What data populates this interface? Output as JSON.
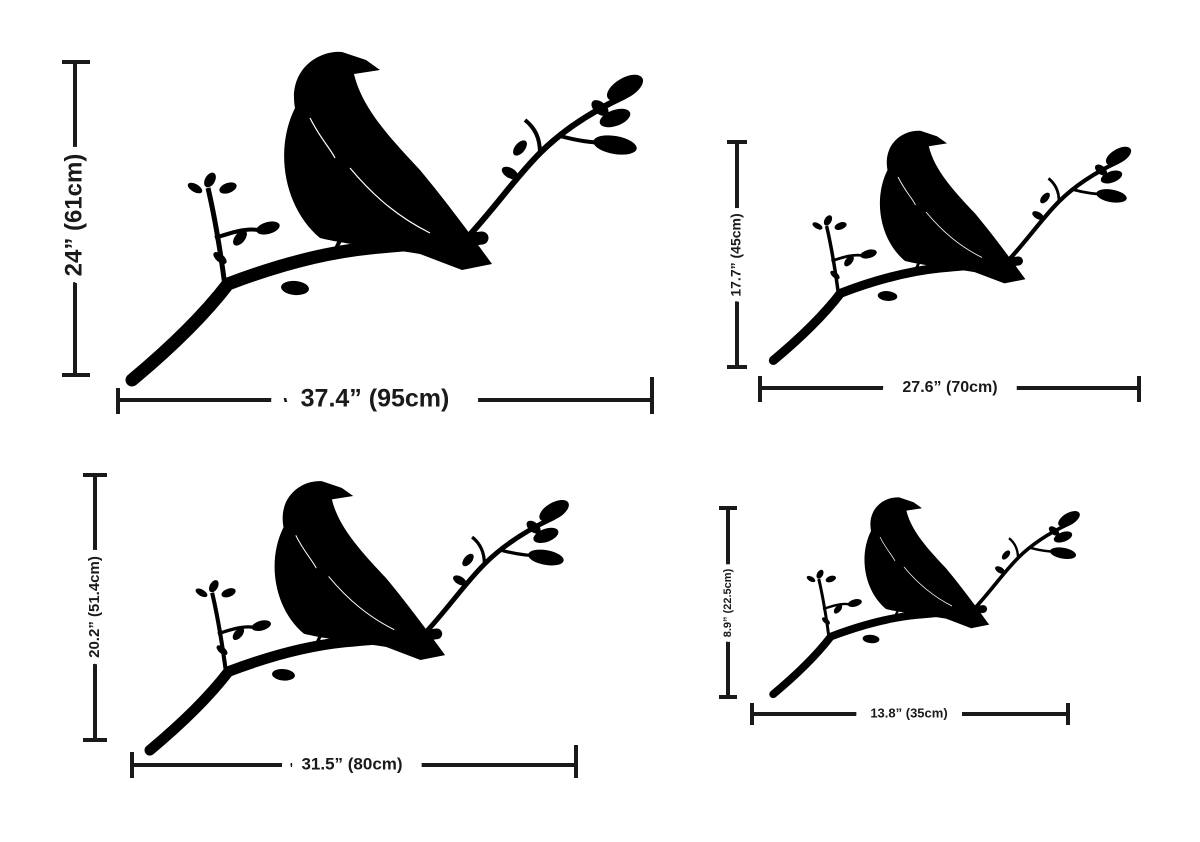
{
  "variants": [
    {
      "height": "24” (61cm)",
      "width": "37.4” (95cm)"
    },
    {
      "height": "17.7” (45cm)",
      "width": "27.6” (70cm)"
    },
    {
      "height": "20.2” (51.4cm)",
      "width": "31.5” (80cm)"
    },
    {
      "height": "8.9” (22.5cm)",
      "width": "13.8” (35cm)"
    }
  ]
}
